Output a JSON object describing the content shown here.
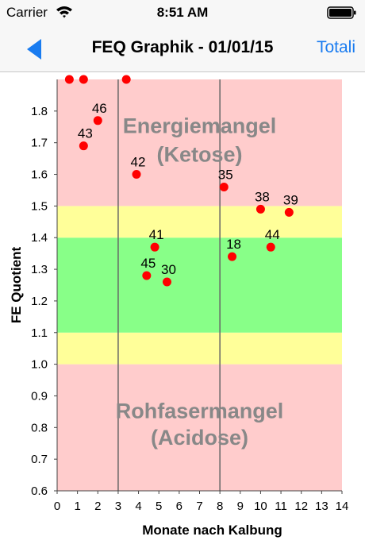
{
  "status_bar": {
    "carrier": "Carrier",
    "time": "8:51 AM"
  },
  "nav": {
    "back_icon": "back-arrow-icon",
    "title": "FEQ Graphik - 01/01/15",
    "right_button": "Totali",
    "accent_color": "#1a7cf0"
  },
  "chart_data": {
    "type": "scatter",
    "title": "",
    "xlabel": "Monate nach Kalbung",
    "ylabel": "FE Quotient",
    "xlim": [
      0,
      14
    ],
    "ylim": [
      0.6,
      1.9
    ],
    "x_ticks": [
      "0",
      "1",
      "2",
      "3",
      "4",
      "5",
      "6",
      "7",
      "8",
      "9",
      "10",
      "11",
      "12",
      "13",
      "14"
    ],
    "y_ticks": [
      "0.6",
      "0.7",
      "0.8",
      "0.9",
      "1.0",
      "1.1",
      "1.2",
      "1.3",
      "1.4",
      "1.5",
      "1.6",
      "1.7",
      "1.8"
    ],
    "vertical_lines": [
      3,
      8
    ],
    "bands": [
      {
        "from": 0.6,
        "to": 1.0,
        "color": "#ffcccc"
      },
      {
        "from": 1.0,
        "to": 1.1,
        "color": "#ffff99"
      },
      {
        "from": 1.1,
        "to": 1.4,
        "color": "#88ff88"
      },
      {
        "from": 1.4,
        "to": 1.5,
        "color": "#ffff99"
      },
      {
        "from": 1.5,
        "to": 1.9,
        "color": "#ffcccc"
      }
    ],
    "annotations": [
      {
        "text": "Energiemangel",
        "x": 7.0,
        "y": 1.73
      },
      {
        "text": "(Ketose)",
        "x": 7.0,
        "y": 1.64
      },
      {
        "text": "Rohfasermangel",
        "x": 7.0,
        "y": 0.83
      },
      {
        "text": "(Acidose)",
        "x": 7.0,
        "y": 0.745
      }
    ],
    "point_color": "#ff0000",
    "points": [
      {
        "label": "46",
        "x": 2.0,
        "y": 1.77
      },
      {
        "label": "43",
        "x": 1.3,
        "y": 1.69
      },
      {
        "label": "42",
        "x": 3.9,
        "y": 1.6
      },
      {
        "label": "35",
        "x": 8.2,
        "y": 1.56
      },
      {
        "label": "38",
        "x": 10.0,
        "y": 1.49
      },
      {
        "label": "39",
        "x": 11.4,
        "y": 1.48
      },
      {
        "label": "41",
        "x": 4.8,
        "y": 1.37
      },
      {
        "label": "44",
        "x": 10.5,
        "y": 1.37
      },
      {
        "label": "18",
        "x": 8.6,
        "y": 1.34
      },
      {
        "label": "45",
        "x": 4.4,
        "y": 1.28
      },
      {
        "label": "30",
        "x": 5.4,
        "y": 1.26
      },
      {
        "label": "",
        "x": 0.6,
        "y": 1.9
      },
      {
        "label": "",
        "x": 1.3,
        "y": 1.9
      },
      {
        "label": "",
        "x": 3.4,
        "y": 1.9
      }
    ]
  }
}
